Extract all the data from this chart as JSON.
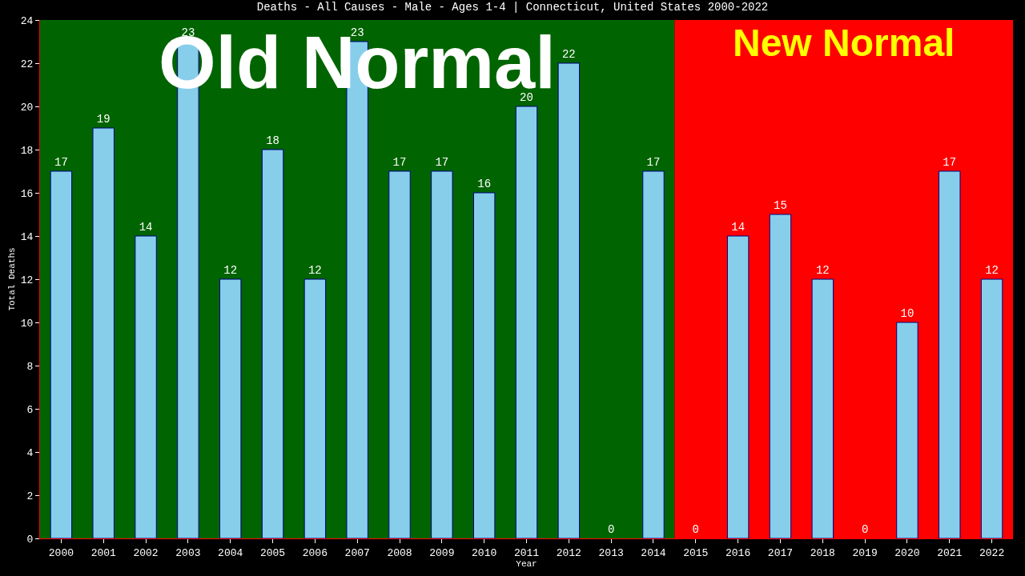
{
  "chart_data": {
    "type": "bar",
    "title": "Deaths - All Causes - Male - Ages 1-4 | Connecticut, United States 2000-2022",
    "xlabel": "Year",
    "ylabel": "Total Deaths",
    "categories": [
      "2000",
      "2001",
      "2002",
      "2003",
      "2004",
      "2005",
      "2006",
      "2007",
      "2008",
      "2009",
      "2010",
      "2011",
      "2012",
      "2013",
      "2014",
      "2015",
      "2016",
      "2017",
      "2018",
      "2019",
      "2020",
      "2021",
      "2022"
    ],
    "values": [
      17,
      19,
      14,
      23,
      12,
      18,
      12,
      23,
      17,
      17,
      16,
      20,
      22,
      0,
      17,
      0,
      14,
      15,
      12,
      0,
      10,
      17,
      12
    ],
    "color": "#87ceeb",
    "data_labels": true,
    "ylim": [
      0,
      24
    ],
    "yticks": [
      0,
      2,
      4,
      6,
      8,
      10,
      12,
      14,
      16,
      18,
      20,
      22,
      24
    ],
    "grid": false,
    "legend": false,
    "bands": [
      {
        "axis": "x",
        "from": "2000",
        "to": "2014",
        "label": "Old Normal",
        "color": "#006400"
      },
      {
        "axis": "x",
        "from": "2015",
        "to": "2022",
        "label": "New Normal",
        "color": "#ff0000"
      }
    ]
  }
}
